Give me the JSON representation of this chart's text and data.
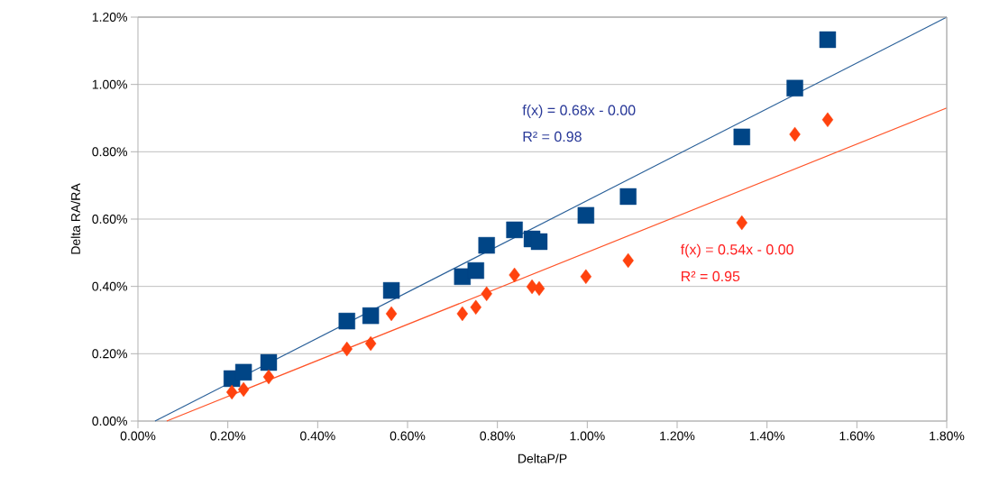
{
  "chart_data": {
    "type": "scatter",
    "xlabel": "DeltaP/P",
    "ylabel": "Delta RA/RA",
    "xlim": [
      0,
      1.8
    ],
    "ylim": [
      0,
      1.2
    ],
    "xticks": [
      {
        "value": 0,
        "label": "0.00%"
      },
      {
        "value": 0.2,
        "label": "0.20%"
      },
      {
        "value": 0.4,
        "label": "0.40%"
      },
      {
        "value": 0.6,
        "label": "0.60%"
      },
      {
        "value": 0.8,
        "label": "0.80%"
      },
      {
        "value": 1.0,
        "label": "1.00%"
      },
      {
        "value": 1.2,
        "label": "1.20%"
      },
      {
        "value": 1.4,
        "label": "1.40%"
      },
      {
        "value": 1.6,
        "label": "1.60%"
      },
      {
        "value": 1.8,
        "label": "1.80%"
      }
    ],
    "yticks": [
      {
        "value": 0,
        "label": "0.00%"
      },
      {
        "value": 0.2,
        "label": "0.20%"
      },
      {
        "value": 0.4,
        "label": "0.40%"
      },
      {
        "value": 0.6,
        "label": "0.60%"
      },
      {
        "value": 0.8,
        "label": "0.80%"
      },
      {
        "value": 1.0,
        "label": "1.00%"
      },
      {
        "value": 1.2,
        "label": "1.20%"
      }
    ],
    "grid": "y",
    "series": [
      {
        "color": "#004586",
        "marker": "square",
        "x": [
          0.209,
          0.235,
          0.291,
          0.465,
          0.518,
          0.564,
          0.722,
          0.752,
          0.776,
          0.838,
          0.877,
          0.893,
          0.997,
          1.091,
          1.344,
          1.462,
          1.535
        ],
        "values": [
          0.126,
          0.145,
          0.174,
          0.297,
          0.313,
          0.388,
          0.429,
          0.447,
          0.522,
          0.568,
          0.541,
          0.533,
          0.611,
          0.667,
          0.844,
          0.989,
          1.133
        ]
      },
      {
        "color": "#ff420e",
        "marker": "diamond",
        "x": [
          0.209,
          0.235,
          0.291,
          0.465,
          0.518,
          0.564,
          0.722,
          0.752,
          0.776,
          0.838,
          0.877,
          0.893,
          0.997,
          1.091,
          1.344,
          1.462,
          1.535
        ],
        "values": [
          0.086,
          0.094,
          0.131,
          0.214,
          0.23,
          0.319,
          0.319,
          0.338,
          0.378,
          0.434,
          0.399,
          0.394,
          0.429,
          0.477,
          0.589,
          0.852,
          0.895
        ]
      },
      {
        "type": "line",
        "color": "#2a6099",
        "marker": "none",
        "x": [
          0.038,
          1.8
        ],
        "values": [
          0,
          1.2
        ]
      },
      {
        "type": "line",
        "color": "#ff5429",
        "marker": "none",
        "x": [
          0.064,
          1.8
        ],
        "values": [
          0,
          0.93
        ]
      }
    ],
    "annotations": [
      "f(x) = 0.68x - 0.00",
      "R² = 0.98",
      "f(x) = 0.54x - 0.00",
      "R² = 0.95"
    ]
  }
}
